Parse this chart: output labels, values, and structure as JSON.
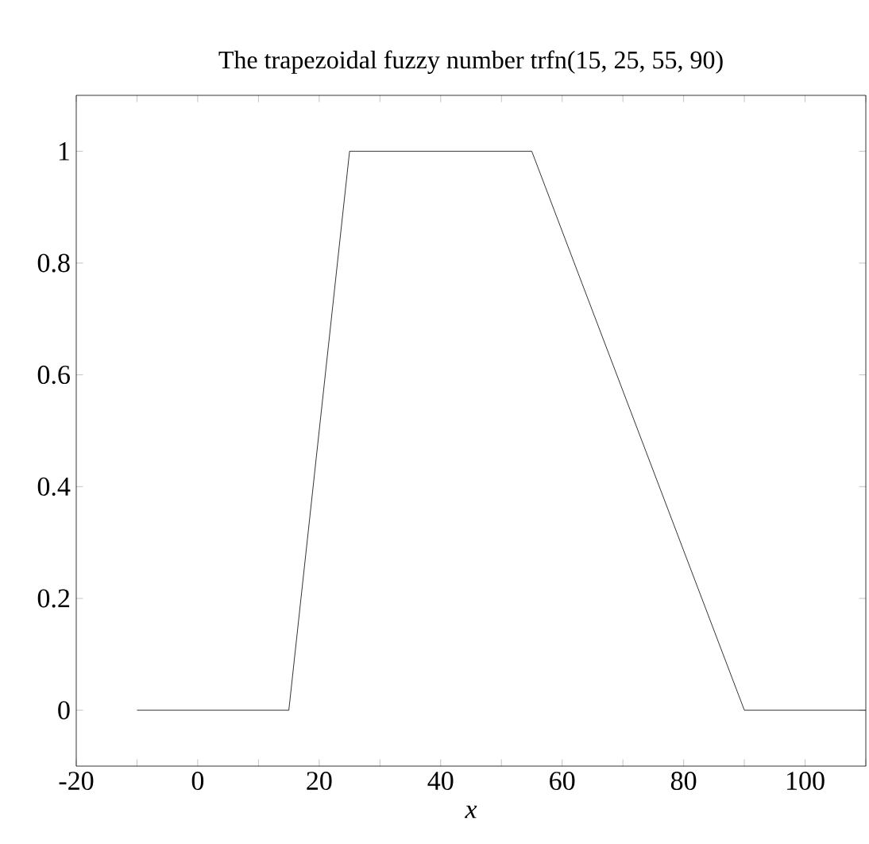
{
  "chart_data": {
    "type": "line",
    "title": "The trapezoidal fuzzy number trfn(15, 25, 55, 90)",
    "xlabel": "x",
    "x": [
      -10,
      15,
      25,
      55,
      90,
      110
    ],
    "values": [
      0,
      0,
      1,
      1,
      0,
      0
    ],
    "color": "#000000",
    "marker": "none",
    "line_style": "solid",
    "grid": false,
    "xlim": [
      -20,
      110
    ],
    "ylim": [
      -0.1,
      1.1
    ],
    "xticks": [
      -20,
      {
        "value": -10,
        "label": null
      },
      0,
      {
        "value": 10,
        "label": null
      },
      20,
      {
        "value": 30,
        "label": null
      },
      40,
      {
        "value": 50,
        "label": null
      },
      60,
      {
        "value": 70,
        "label": null
      },
      80,
      {
        "value": 90,
        "label": null
      },
      100,
      {
        "value": 110,
        "label": null
      }
    ],
    "yticks": [
      0,
      0.2,
      0.4,
      0.6,
      0.8,
      1
    ]
  }
}
